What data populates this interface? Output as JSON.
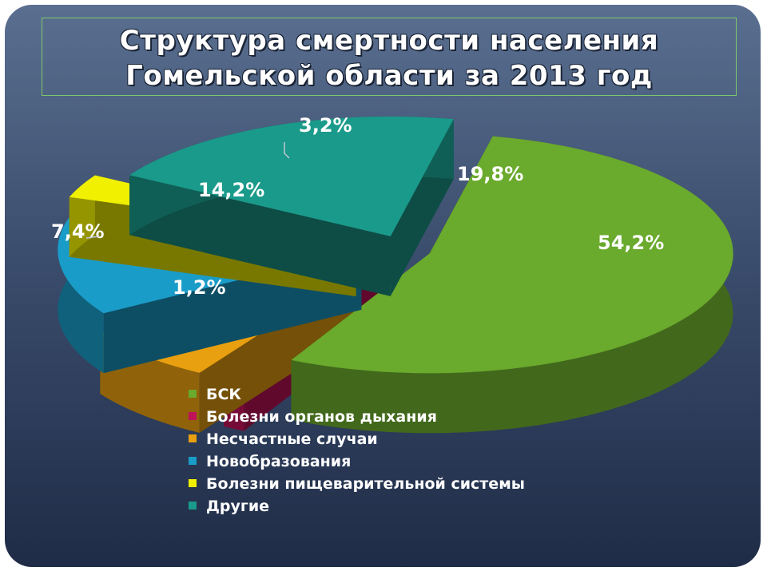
{
  "title": {
    "line1": "Структура смертности населения",
    "line2": "Гомельской области за 2013 год"
  },
  "chart_data": {
    "type": "pie",
    "title": "Структура смертности населения Гомельской области за 2013 год",
    "unit": "%",
    "style": "3d-exploded",
    "legend_position": "bottom",
    "slices": [
      {
        "name": "БСК",
        "value": 54.2,
        "label": "54,2%",
        "color": "#6aaa2c"
      },
      {
        "name": "Болезни органов дыхания",
        "value": 1.2,
        "label": "1,2%",
        "color": "#c0125a"
      },
      {
        "name": "Несчастные случаи",
        "value": 7.4,
        "label": "7,4%",
        "color": "#e8a010"
      },
      {
        "name": "Новобразования",
        "value": 14.2,
        "label": "14,2%",
        "color": "#1a9cc8"
      },
      {
        "name": "Болезни пищеварительной системы",
        "value": 3.2,
        "label": "3,2%",
        "color": "#f0f000"
      },
      {
        "name": "Другие",
        "value": 19.8,
        "label": "19,8%",
        "color": "#1a9a8a"
      }
    ]
  }
}
